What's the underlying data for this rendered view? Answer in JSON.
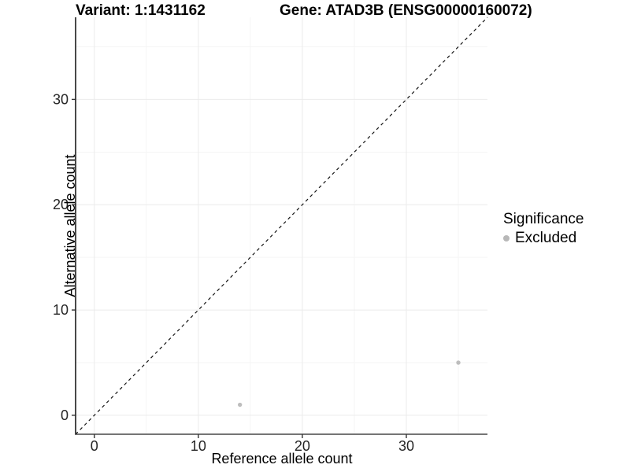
{
  "header": {
    "variant_title": "Variant: 1:1431162",
    "gene_title": "Gene: ATAD3B (ENSG00000160072)"
  },
  "chart_data": {
    "type": "scatter",
    "title": "Variant: 1:1431162   Gene: ATAD3B (ENSG00000160072)",
    "xlabel": "Reference allele count",
    "ylabel": "Alternative allele count",
    "xlim": [
      0,
      36
    ],
    "ylim": [
      0,
      36
    ],
    "expansion": 1.8,
    "x_ticks": [
      0,
      10,
      20,
      30
    ],
    "y_ticks": [
      0,
      10,
      20,
      30
    ],
    "x_minor_ticks": [
      5,
      15,
      25,
      35
    ],
    "y_minor_ticks": [
      5,
      15,
      25,
      35
    ],
    "grid": true,
    "legend": {
      "position": "right",
      "title": "Significance",
      "items": [
        {
          "label": "Excluded",
          "color": "#b8b8b8"
        }
      ]
    },
    "series": [
      {
        "name": "Excluded",
        "color": "#bdbdbd",
        "points": [
          {
            "x": 14,
            "y": 1
          },
          {
            "x": 35,
            "y": 5
          }
        ]
      }
    ],
    "reference_line": {
      "kind": "identity y=x",
      "style": "dashed",
      "color": "#141414"
    },
    "colors": {
      "background": "#ffffff",
      "grid_major": "#ebebeb",
      "grid_minor": "#f5f5f5",
      "axis_line_left": "#1a1a1a",
      "axis_line_bottom": "#757575",
      "tick_mark": "#333333",
      "tick_label": "#262626"
    }
  }
}
